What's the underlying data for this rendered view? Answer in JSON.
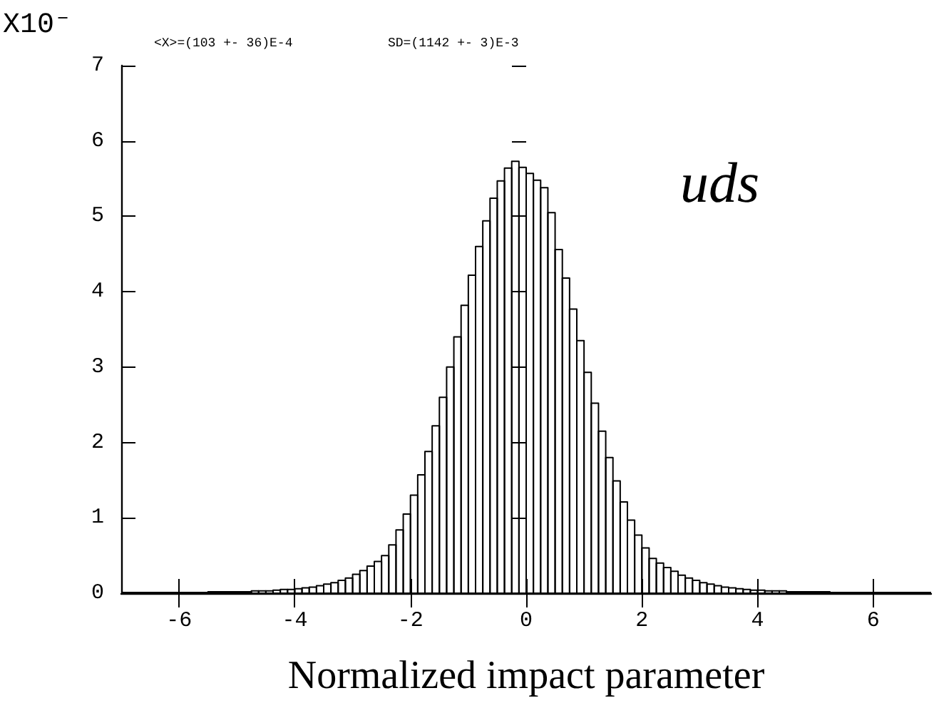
{
  "chart_data": {
    "type": "histogram",
    "xlabel": "Normalized impact parameter",
    "ylabel": "X10⁻",
    "annotations": [
      "<X>=(103 +- 36)E-4",
      "SD=(1142 +- 3)E-3",
      "uds"
    ],
    "bins": [
      -7,
      -6.875,
      -6.75,
      -6.625,
      -6.5,
      -6.375,
      -6.25,
      -6.125,
      -6,
      -5.875,
      -5.75,
      -5.625,
      -5.5,
      -5.375,
      -5.25,
      -5.125,
      -5,
      -4.875,
      -4.75,
      -4.625,
      -4.5,
      -4.375,
      -4.25,
      -4.125,
      -4,
      -3.875,
      -3.75,
      -3.625,
      -3.5,
      -3.375,
      -3.25,
      -3.125,
      -3,
      -2.875,
      -2.75,
      -2.625,
      -2.5,
      -2.375,
      -2.25,
      -2.125,
      -2,
      -1.875,
      -1.75,
      -1.625,
      -1.5,
      -1.375,
      -1.25,
      -1.125,
      -1,
      -0.875,
      -0.75,
      -0.625,
      -0.5,
      -0.375,
      -0.25,
      -0.125,
      0,
      0.125,
      0.25,
      0.375,
      0.5,
      0.625,
      0.75,
      0.875,
      1,
      1.125,
      1.25,
      1.375,
      1.5,
      1.625,
      1.75,
      1.875,
      2,
      2.125,
      2.25,
      2.375,
      2.5,
      2.625,
      2.75,
      2.875,
      3,
      3.125,
      3.25,
      3.375,
      3.5,
      3.625,
      3.75,
      3.875,
      4,
      4.125,
      4.25,
      4.375,
      4.5,
      4.625,
      4.75,
      4.875,
      5,
      5.125,
      5.25,
      5.375,
      5.5,
      5.625,
      5.75,
      5.875,
      6,
      6.125,
      6.25,
      6.375,
      6.5,
      6.625,
      6.75,
      6.875,
      7
    ],
    "values": [
      0.01,
      0.01,
      0.01,
      0.01,
      0.01,
      0.01,
      0.01,
      0.01,
      0.01,
      0.01,
      0.01,
      0.01,
      0.02,
      0.02,
      0.02,
      0.02,
      0.02,
      0.02,
      0.03,
      0.03,
      0.03,
      0.04,
      0.05,
      0.05,
      0.06,
      0.07,
      0.08,
      0.1,
      0.12,
      0.14,
      0.17,
      0.2,
      0.25,
      0.3,
      0.36,
      0.42,
      0.5,
      0.64,
      0.84,
      1.05,
      1.3,
      1.57,
      1.88,
      2.22,
      2.6,
      3.0,
      3.4,
      3.82,
      4.22,
      4.6,
      4.94,
      5.24,
      5.47,
      5.64,
      5.73,
      5.65,
      5.57,
      5.48,
      5.38,
      5.05,
      4.56,
      4.18,
      3.77,
      3.35,
      2.93,
      2.52,
      2.15,
      1.8,
      1.49,
      1.21,
      0.97,
      0.77,
      0.6,
      0.46,
      0.4,
      0.34,
      0.29,
      0.24,
      0.2,
      0.17,
      0.14,
      0.12,
      0.1,
      0.08,
      0.07,
      0.06,
      0.05,
      0.04,
      0.04,
      0.03,
      0.03,
      0.03,
      0.02,
      0.02,
      0.02,
      0.02,
      0.02,
      0.02,
      0.01,
      0.01,
      0.01,
      0.01,
      0.01,
      0.01,
      0.01,
      0.01,
      0.01,
      0.01,
      0.01,
      0.01,
      0.01,
      0.01
    ],
    "color": "#000000",
    "xlim": [
      -7,
      7
    ],
    "xticks": [
      -6,
      -4,
      -2,
      0,
      2,
      4,
      6
    ],
    "ylim": [
      0,
      7
    ],
    "yticks": [
      0,
      1,
      2,
      3,
      4,
      5,
      6,
      7
    ],
    "grid": false
  }
}
